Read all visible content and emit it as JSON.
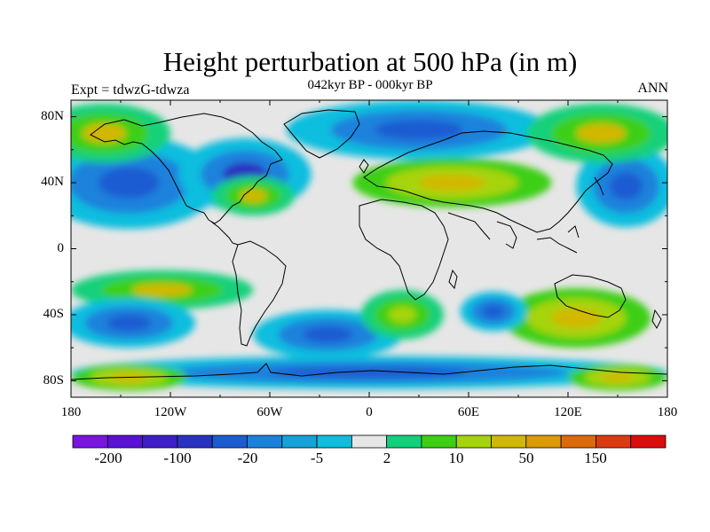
{
  "title": "Height perturbation at 500 hPa (in m)",
  "subtitle": "042kyr BP - 000kyr BP",
  "left_label": "Expt = tdwzG-tdwza",
  "right_label": "ANN",
  "lat_labels": [
    "80N",
    "40N",
    "0",
    "40S",
    "80S"
  ],
  "lon_labels": [
    "180",
    "120W",
    "60W",
    "0",
    "60E",
    "120E",
    "180"
  ],
  "colorbar": {
    "colors": [
      "#7a14e0",
      "#5a10d6",
      "#3d1ec8",
      "#2a32c2",
      "#1b5cd2",
      "#1b82dc",
      "#14a2d8",
      "#0fbede",
      "#e6e6e6",
      "#12d07a",
      "#3ecf14",
      "#a6d40a",
      "#d2b806",
      "#dc9a08",
      "#dc6a0a",
      "#dc3a10",
      "#dc0c0c"
    ],
    "labels": [
      "-200",
      "-100",
      "-20",
      "-5",
      "2",
      "10",
      "50",
      "150"
    ]
  },
  "map": {
    "background_color": "#e6e6e6",
    "fields": [
      {
        "type": "blob",
        "lon": -145,
        "lat": 40,
        "rx": 55,
        "ry": 28,
        "colors": [
          "#0fbede",
          "#1b82dc",
          "#1b5cd2"
        ]
      },
      {
        "type": "blob",
        "lon": -75,
        "lat": 45,
        "rx": 40,
        "ry": 22,
        "colors": [
          "#0fbede",
          "#1b82dc",
          "#2a32c2"
        ]
      },
      {
        "type": "blob",
        "lon": -70,
        "lat": 32,
        "rx": 25,
        "ry": 12,
        "colors": [
          "#12d07a",
          "#3ecf14",
          "#d2b806"
        ]
      },
      {
        "type": "blob",
        "lon": 30,
        "lat": 72,
        "rx": 80,
        "ry": 18,
        "colors": [
          "#0fbede",
          "#1b82dc",
          "#1b5cd2"
        ]
      },
      {
        "type": "blob",
        "lon": 50,
        "lat": 40,
        "rx": 60,
        "ry": 15,
        "colors": [
          "#3ecf14",
          "#a6d40a",
          "#d2b806"
        ]
      },
      {
        "type": "blob",
        "lon": 155,
        "lat": 38,
        "rx": 30,
        "ry": 25,
        "colors": [
          "#0fbede",
          "#1b82dc",
          "#1b5cd2"
        ]
      },
      {
        "type": "blob",
        "lon": 140,
        "lat": 70,
        "rx": 45,
        "ry": 18,
        "colors": [
          "#12d07a",
          "#3ecf14",
          "#d2b806"
        ]
      },
      {
        "type": "blob",
        "lon": -160,
        "lat": 70,
        "rx": 40,
        "ry": 18,
        "colors": [
          "#12d07a",
          "#3ecf14",
          "#d2b806"
        ]
      },
      {
        "type": "blob",
        "lon": -125,
        "lat": -25,
        "rx": 55,
        "ry": 12,
        "colors": [
          "#12d07a",
          "#3ecf14",
          "#d2b806"
        ]
      },
      {
        "type": "blob",
        "lon": -145,
        "lat": -45,
        "rx": 40,
        "ry": 15,
        "colors": [
          "#0fbede",
          "#1b82dc",
          "#1b5cd2"
        ]
      },
      {
        "type": "blob",
        "lon": -25,
        "lat": -52,
        "rx": 45,
        "ry": 15,
        "colors": [
          "#0fbede",
          "#1b82dc",
          "#1b5cd2"
        ]
      },
      {
        "type": "blob",
        "lon": 20,
        "lat": -40,
        "rx": 25,
        "ry": 15,
        "colors": [
          "#12d07a",
          "#3ecf14",
          "#a6d40a"
        ]
      },
      {
        "type": "blob",
        "lon": 125,
        "lat": -42,
        "rx": 45,
        "ry": 18,
        "colors": [
          "#3ecf14",
          "#a6d40a",
          "#d2b806"
        ]
      },
      {
        "type": "blob",
        "lon": 75,
        "lat": -38,
        "rx": 20,
        "ry": 12,
        "colors": [
          "#0fbede",
          "#1b82dc",
          "#1b5cd2"
        ]
      },
      {
        "type": "blob",
        "lon": 0,
        "lat": -75,
        "rx": 180,
        "ry": 10,
        "colors": [
          "#0fbede",
          "#1b82dc",
          "#1b5cd2"
        ]
      },
      {
        "type": "blob",
        "lon": -145,
        "lat": -78,
        "rx": 35,
        "ry": 8,
        "colors": [
          "#3ecf14",
          "#a6d40a",
          "#d2b806"
        ]
      },
      {
        "type": "blob",
        "lon": 150,
        "lat": -78,
        "rx": 30,
        "ry": 8,
        "colors": [
          "#3ecf14",
          "#a6d40a",
          "#d2b806"
        ]
      }
    ]
  }
}
